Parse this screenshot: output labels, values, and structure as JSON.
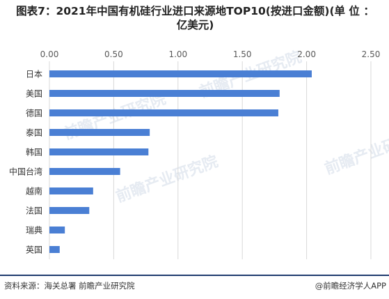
{
  "title": {
    "line1": "图表7：2021年中国有机硅行业进口来源地TOP10(按进口金额)(单 位 ：",
    "line2": "亿美元)"
  },
  "footer": {
    "source": "资料来源：海关总署 前瞻产业研究院",
    "brand": "@前瞻经济学人APP"
  },
  "watermark": {
    "text": "前瞻产业研究院",
    "color": "#e6ebf2"
  },
  "colors": {
    "bar": "#4a7fd4",
    "gridline": "#d9d9d9",
    "tick_label": "#595959",
    "category_label": "#333333",
    "footer_rule": "#1d3a6e"
  },
  "chart_data": {
    "type": "bar",
    "orientation": "horizontal",
    "categories": [
      "日本",
      "美国",
      "德国",
      "泰国",
      "韩国",
      "中国台湾",
      "越南",
      "法国",
      "瑞典",
      "英国"
    ],
    "values": [
      2.04,
      1.79,
      1.78,
      0.78,
      0.77,
      0.55,
      0.34,
      0.31,
      0.12,
      0.08
    ],
    "xlim": [
      0,
      2.5
    ],
    "xticks": [
      "0.00",
      "0.50",
      "1.00",
      "1.50",
      "2.00",
      "2.50"
    ],
    "xtick_values": [
      0,
      0.5,
      1.0,
      1.5,
      2.0,
      2.5
    ],
    "grid": true,
    "axis_position": "top"
  }
}
